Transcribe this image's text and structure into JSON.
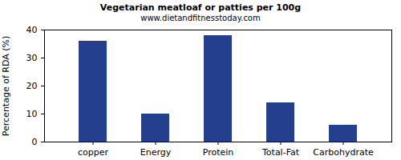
{
  "chart_data": {
    "type": "bar",
    "title": "Vegetarian meatloaf or patties per 100g",
    "subtitle": "www.dietandfitnesstoday.com",
    "y_label": "Percentage of RDA (%)",
    "categories": [
      "copper",
      "Energy",
      "Protein",
      "Total-Fat",
      "Carbohydrate"
    ],
    "values": [
      36,
      10,
      38,
      14,
      6
    ],
    "color": "#253f8f",
    "ylim": [
      0,
      40
    ],
    "yticks": [
      0,
      10,
      20,
      30,
      40
    ],
    "grid": false
  }
}
